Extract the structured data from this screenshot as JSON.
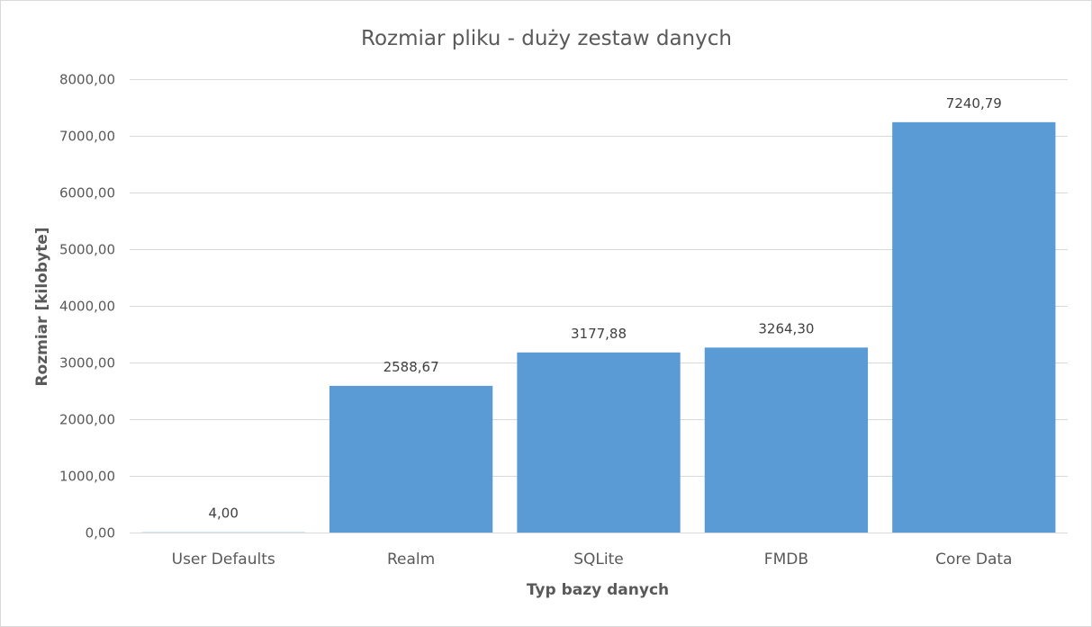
{
  "chart_data": {
    "type": "bar",
    "title": "Rozmiar pliku - duży zestaw danych",
    "xlabel": "Typ bazy danych",
    "ylabel": "Rozmiar [kilobyte]",
    "categories": [
      "User Defaults",
      "Realm",
      "SQLite",
      "FMDB",
      "Core Data"
    ],
    "values": [
      4.0,
      2588.67,
      3177.88,
      3264.3,
      7240.79
    ],
    "data_labels": [
      "4,00",
      "2588,67",
      "3177,88",
      "3264,30",
      "7240,79"
    ],
    "ylim": [
      0,
      8000
    ],
    "yticks": [
      0,
      1000,
      2000,
      3000,
      4000,
      5000,
      6000,
      7000,
      8000
    ],
    "ytick_labels": [
      "0,00",
      "1000,00",
      "2000,00",
      "3000,00",
      "4000,00",
      "5000,00",
      "6000,00",
      "7000,00",
      "8000,00"
    ],
    "grid": true,
    "legend": "none",
    "bar_color": "#5b9bd5"
  }
}
